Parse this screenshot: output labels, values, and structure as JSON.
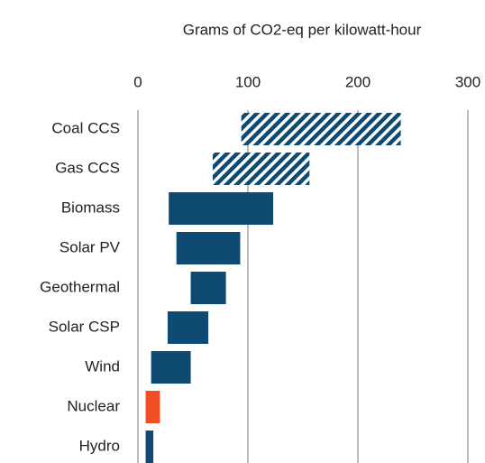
{
  "chart_data": {
    "type": "floating-bar",
    "title": "Grams of  CO2-eq per kilowatt-hour",
    "categories": [
      "Coal CCS",
      "Gas CCS",
      "Biomass",
      "Solar PV",
      "Geothermal",
      "Solar CSP",
      "Wind",
      "Nuclear",
      "Hydro"
    ],
    "low": [
      94,
      68,
      28,
      35,
      48,
      27,
      12,
      7,
      7
    ],
    "high": [
      239,
      156,
      123,
      93,
      80,
      64,
      48,
      20,
      14
    ],
    "colors": [
      "#0e4a72",
      "#0e4a72",
      "#0e4a72",
      "#0e4a72",
      "#0e4a72",
      "#0e4a72",
      "#0e4a72",
      "#f04e23",
      "#0e4a72"
    ],
    "hatched": [
      true,
      true,
      false,
      false,
      false,
      false,
      false,
      false,
      false
    ],
    "xlim": [
      0,
      300
    ],
    "xticks": [
      0,
      100,
      200,
      300
    ],
    "grid": true
  }
}
